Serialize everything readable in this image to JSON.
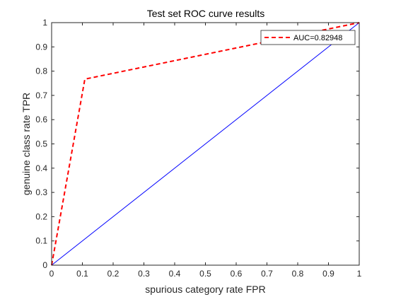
{
  "chart_data": {
    "type": "line",
    "title": "Test set ROC curve results",
    "xlabel": "spurious category rate FPR",
    "ylabel": "genuine class rate TPR",
    "xlim": [
      0,
      1
    ],
    "ylim": [
      0,
      1
    ],
    "xticks": [
      0,
      0.1,
      0.2,
      0.3,
      0.4,
      0.5,
      0.6,
      0.7,
      0.8,
      0.9,
      1
    ],
    "yticks": [
      0,
      0.1,
      0.2,
      0.3,
      0.4,
      0.5,
      0.6,
      0.7,
      0.8,
      0.9,
      1
    ],
    "xtick_labels": [
      "0",
      "0.1",
      "0.2",
      "0.3",
      "0.4",
      "0.5",
      "0.6",
      "0.7",
      "0.8",
      "0.9",
      "1"
    ],
    "ytick_labels": [
      "0",
      "0.1",
      "0.2",
      "0.3",
      "0.4",
      "0.5",
      "0.6",
      "0.7",
      "0.8",
      "0.9",
      "1"
    ],
    "grid": false,
    "legend_position": "top-right",
    "series": [
      {
        "name": "AUC=0.82948",
        "style": "dashed",
        "color": "#ff0000",
        "in_legend": true,
        "x": [
          0,
          0.108,
          1
        ],
        "y": [
          0,
          0.767,
          1
        ]
      },
      {
        "style": "solid",
        "color": "#0000ff",
        "in_legend": false,
        "x": [
          0,
          1
        ],
        "y": [
          0,
          1
        ]
      }
    ]
  }
}
